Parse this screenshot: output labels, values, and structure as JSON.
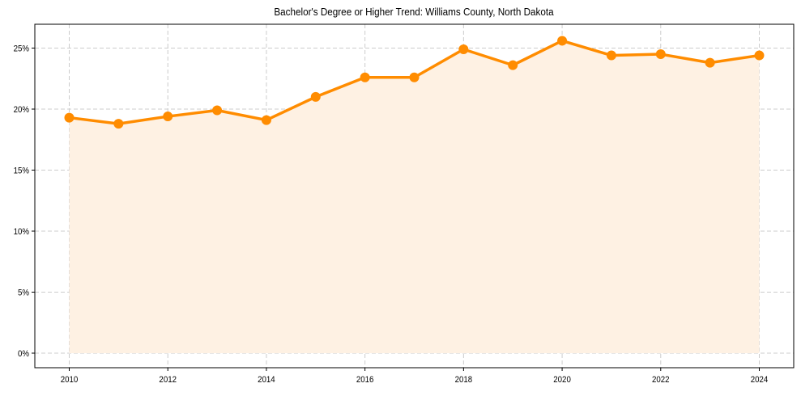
{
  "chart_data": {
    "type": "line",
    "title": "Bachelor's Degree or Higher Trend: Williams County, North Dakota",
    "xlabel": "",
    "ylabel": "",
    "x": [
      2010,
      2011,
      2012,
      2013,
      2014,
      2015,
      2016,
      2017,
      2018,
      2019,
      2020,
      2021,
      2022,
      2023,
      2024
    ],
    "series": [
      {
        "name": "Bachelor's Degree or Higher (%)",
        "values": [
          19.3,
          18.8,
          19.4,
          19.9,
          19.1,
          21.0,
          22.6,
          22.6,
          24.9,
          23.6,
          25.6,
          24.4,
          24.5,
          23.8,
          24.4
        ],
        "color": "#FF8C00",
        "fill_color": "#FEF1E3",
        "markers": true,
        "area_fill": true
      }
    ],
    "xticks": [
      2010,
      2012,
      2014,
      2016,
      2018,
      2020,
      2022,
      2024
    ],
    "xtick_labels": [
      "2010",
      "2012",
      "2014",
      "2016",
      "2018",
      "2020",
      "2022",
      "2024"
    ],
    "yticks": [
      0,
      5,
      10,
      15,
      20,
      25
    ],
    "ytick_labels": [
      "0%",
      "5%",
      "10%",
      "15%",
      "20%",
      "25%"
    ],
    "ylim": [
      -1.2,
      26.9
    ],
    "xlim": [
      2009.3,
      2024.7
    ],
    "grid": true,
    "grid_style": "dashed",
    "legend": null
  }
}
